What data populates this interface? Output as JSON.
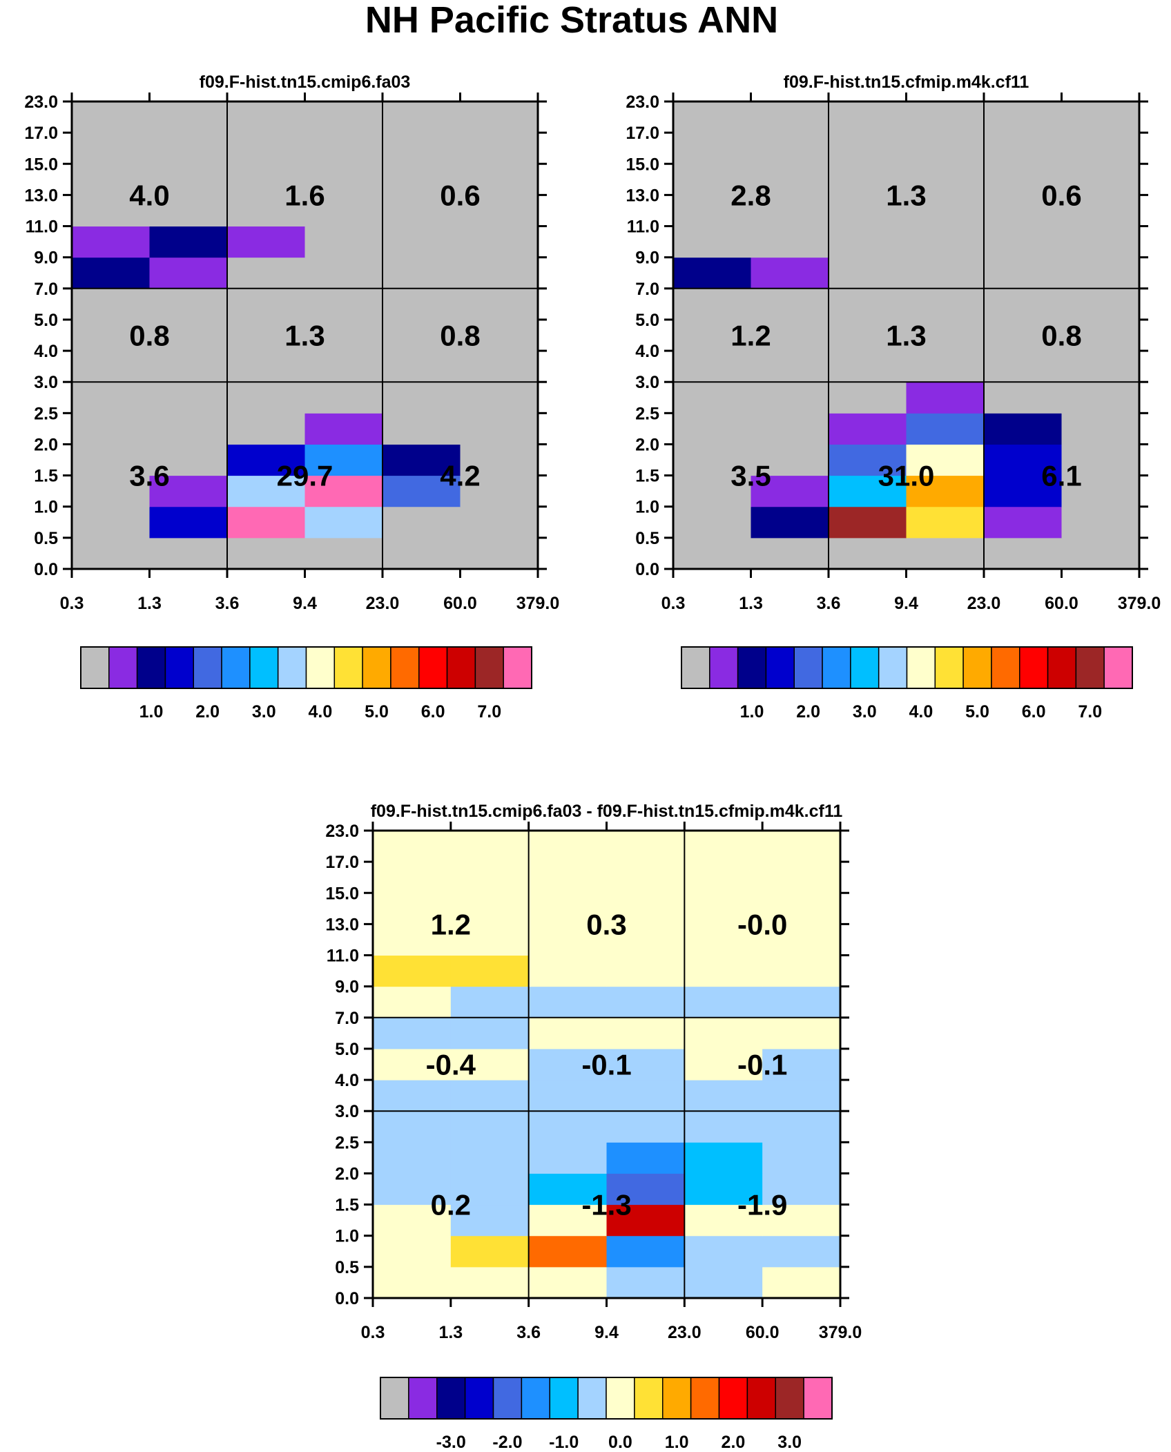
{
  "title": "NH Pacific Stratus ANN",
  "chart_data": [
    {
      "type": "heatmap",
      "title": "f09.F-hist.tn15.cmip6.fa03",
      "x_tick_labels": [
        "0.3",
        "1.3",
        "3.6",
        "9.4",
        "23.0",
        "60.0",
        "379.0"
      ],
      "y_tick_labels": [
        "0.0",
        "0.5",
        "1.0",
        "1.5",
        "2.0",
        "2.5",
        "3.0",
        "4.0",
        "5.0",
        "7.0",
        "9.0",
        "11.0",
        "13.0",
        "15.0",
        "17.0",
        "23.0"
      ],
      "cell_colors_bottom_to_top": [
        [
          "#bebebe",
          "#bebebe",
          "#bebebe",
          "#bebebe",
          "#bebebe",
          "#bebebe"
        ],
        [
          "#bebebe",
          "#0000cd",
          "#ff69b4",
          "#a4d3ff",
          "#bebebe",
          "#bebebe"
        ],
        [
          "#bebebe",
          "#8a2be2",
          "#a4d3ff",
          "#ff69b4",
          "#4169e1",
          "#bebebe"
        ],
        [
          "#bebebe",
          "#bebebe",
          "#0000cd",
          "#1e90ff",
          "#00008b",
          "#bebebe"
        ],
        [
          "#bebebe",
          "#bebebe",
          "#bebebe",
          "#8a2be2",
          "#bebebe",
          "#bebebe"
        ],
        [
          "#bebebe",
          "#bebebe",
          "#bebebe",
          "#bebebe",
          "#bebebe",
          "#bebebe"
        ],
        [
          "#bebebe",
          "#bebebe",
          "#bebebe",
          "#bebebe",
          "#bebebe",
          "#bebebe"
        ],
        [
          "#bebebe",
          "#bebebe",
          "#bebebe",
          "#bebebe",
          "#bebebe",
          "#bebebe"
        ],
        [
          "#bebebe",
          "#bebebe",
          "#bebebe",
          "#bebebe",
          "#bebebe",
          "#bebebe"
        ],
        [
          "#00008b",
          "#8a2be2",
          "#bebebe",
          "#bebebe",
          "#bebebe",
          "#bebebe"
        ],
        [
          "#8a2be2",
          "#00008b",
          "#8a2be2",
          "#bebebe",
          "#bebebe",
          "#bebebe"
        ],
        [
          "#bebebe",
          "#bebebe",
          "#bebebe",
          "#bebebe",
          "#bebebe",
          "#bebebe"
        ],
        [
          "#bebebe",
          "#bebebe",
          "#bebebe",
          "#bebebe",
          "#bebebe",
          "#bebebe"
        ],
        [
          "#bebebe",
          "#bebebe",
          "#bebebe",
          "#bebebe",
          "#bebebe",
          "#bebebe"
        ],
        [
          "#bebebe",
          "#bebebe",
          "#bebebe",
          "#bebebe",
          "#bebebe",
          "#bebebe"
        ]
      ],
      "region_values_top_to_bottom": [
        [
          "4.0",
          "1.6",
          "0.6"
        ],
        [
          "0.8",
          "1.3",
          "0.8"
        ],
        [
          "3.6",
          "29.7",
          "4.2"
        ]
      ],
      "colorbar": {
        "colors": [
          "#bebebe",
          "#8a2be2",
          "#00008b",
          "#0000cd",
          "#4169e1",
          "#1e90ff",
          "#00bfff",
          "#a4d3ff",
          "#ffffcc",
          "#ffe135",
          "#ffaa00",
          "#ff6a00",
          "#ff0000",
          "#cd0000",
          "#9c2626",
          "#ff69b4"
        ],
        "labels": [
          "1.0",
          "2.0",
          "3.0",
          "4.0",
          "5.0",
          "6.0",
          "7.0"
        ]
      }
    },
    {
      "type": "heatmap",
      "title": "f09.F-hist.tn15.cfmip.m4k.cf11",
      "x_tick_labels": [
        "0.3",
        "1.3",
        "3.6",
        "9.4",
        "23.0",
        "60.0",
        "379.0"
      ],
      "y_tick_labels": [
        "0.0",
        "0.5",
        "1.0",
        "1.5",
        "2.0",
        "2.5",
        "3.0",
        "4.0",
        "5.0",
        "7.0",
        "9.0",
        "11.0",
        "13.0",
        "15.0",
        "17.0",
        "23.0"
      ],
      "cell_colors_bottom_to_top": [
        [
          "#bebebe",
          "#bebebe",
          "#bebebe",
          "#bebebe",
          "#bebebe",
          "#bebebe"
        ],
        [
          "#bebebe",
          "#00008b",
          "#9c2626",
          "#ffe135",
          "#8a2be2",
          "#bebebe"
        ],
        [
          "#bebebe",
          "#8a2be2",
          "#00bfff",
          "#ffaa00",
          "#0000cd",
          "#bebebe"
        ],
        [
          "#bebebe",
          "#bebebe",
          "#4169e1",
          "#ffffcc",
          "#0000cd",
          "#bebebe"
        ],
        [
          "#bebebe",
          "#bebebe",
          "#8a2be2",
          "#4169e1",
          "#00008b",
          "#bebebe"
        ],
        [
          "#bebebe",
          "#bebebe",
          "#bebebe",
          "#8a2be2",
          "#bebebe",
          "#bebebe"
        ],
        [
          "#bebebe",
          "#bebebe",
          "#bebebe",
          "#bebebe",
          "#bebebe",
          "#bebebe"
        ],
        [
          "#bebebe",
          "#bebebe",
          "#bebebe",
          "#bebebe",
          "#bebebe",
          "#bebebe"
        ],
        [
          "#bebebe",
          "#bebebe",
          "#bebebe",
          "#bebebe",
          "#bebebe",
          "#bebebe"
        ],
        [
          "#00008b",
          "#8a2be2",
          "#bebebe",
          "#bebebe",
          "#bebebe",
          "#bebebe"
        ],
        [
          "#bebebe",
          "#bebebe",
          "#bebebe",
          "#bebebe",
          "#bebebe",
          "#bebebe"
        ],
        [
          "#bebebe",
          "#bebebe",
          "#bebebe",
          "#bebebe",
          "#bebebe",
          "#bebebe"
        ],
        [
          "#bebebe",
          "#bebebe",
          "#bebebe",
          "#bebebe",
          "#bebebe",
          "#bebebe"
        ],
        [
          "#bebebe",
          "#bebebe",
          "#bebebe",
          "#bebebe",
          "#bebebe",
          "#bebebe"
        ],
        [
          "#bebebe",
          "#bebebe",
          "#bebebe",
          "#bebebe",
          "#bebebe",
          "#bebebe"
        ]
      ],
      "region_values_top_to_bottom": [
        [
          "2.8",
          "1.3",
          "0.6"
        ],
        [
          "1.2",
          "1.3",
          "0.8"
        ],
        [
          "3.5",
          "31.0",
          "6.1"
        ]
      ],
      "colorbar": {
        "colors": [
          "#bebebe",
          "#8a2be2",
          "#00008b",
          "#0000cd",
          "#4169e1",
          "#1e90ff",
          "#00bfff",
          "#a4d3ff",
          "#ffffcc",
          "#ffe135",
          "#ffaa00",
          "#ff6a00",
          "#ff0000",
          "#cd0000",
          "#9c2626",
          "#ff69b4"
        ],
        "labels": [
          "1.0",
          "2.0",
          "3.0",
          "4.0",
          "5.0",
          "6.0",
          "7.0"
        ]
      }
    },
    {
      "type": "heatmap",
      "title": "f09.F-hist.tn15.cmip6.fa03 - f09.F-hist.tn15.cfmip.m4k.cf11",
      "x_tick_labels": [
        "0.3",
        "1.3",
        "3.6",
        "9.4",
        "23.0",
        "60.0",
        "379.0"
      ],
      "y_tick_labels": [
        "0.0",
        "0.5",
        "1.0",
        "1.5",
        "2.0",
        "2.5",
        "3.0",
        "4.0",
        "5.0",
        "7.0",
        "9.0",
        "11.0",
        "13.0",
        "15.0",
        "17.0",
        "23.0"
      ],
      "cell_colors_bottom_to_top": [
        [
          "#ffffcc",
          "#ffffcc",
          "#ffffcc",
          "#a4d3ff",
          "#a4d3ff",
          "#ffffcc"
        ],
        [
          "#ffffcc",
          "#ffe135",
          "#ff6a00",
          "#1e90ff",
          "#a4d3ff",
          "#a4d3ff"
        ],
        [
          "#ffffcc",
          "#a4d3ff",
          "#ffffcc",
          "#cd0000",
          "#ffffcc",
          "#ffffcc"
        ],
        [
          "#a4d3ff",
          "#a4d3ff",
          "#00bfff",
          "#4169e1",
          "#00bfff",
          "#a4d3ff"
        ],
        [
          "#a4d3ff",
          "#a4d3ff",
          "#a4d3ff",
          "#1e90ff",
          "#00bfff",
          "#a4d3ff"
        ],
        [
          "#a4d3ff",
          "#a4d3ff",
          "#a4d3ff",
          "#a4d3ff",
          "#a4d3ff",
          "#a4d3ff"
        ],
        [
          "#a4d3ff",
          "#a4d3ff",
          "#a4d3ff",
          "#a4d3ff",
          "#a4d3ff",
          "#a4d3ff"
        ],
        [
          "#ffffcc",
          "#ffffcc",
          "#a4d3ff",
          "#a4d3ff",
          "#ffffcc",
          "#a4d3ff"
        ],
        [
          "#a4d3ff",
          "#a4d3ff",
          "#ffffcc",
          "#ffffcc",
          "#ffffcc",
          "#ffffcc"
        ],
        [
          "#ffffcc",
          "#a4d3ff",
          "#a4d3ff",
          "#a4d3ff",
          "#a4d3ff",
          "#a4d3ff"
        ],
        [
          "#ffe135",
          "#ffe135",
          "#ffffcc",
          "#ffffcc",
          "#ffffcc",
          "#ffffcc"
        ],
        [
          "#ffffcc",
          "#ffffcc",
          "#ffffcc",
          "#ffffcc",
          "#ffffcc",
          "#ffffcc"
        ],
        [
          "#ffffcc",
          "#ffffcc",
          "#ffffcc",
          "#ffffcc",
          "#ffffcc",
          "#ffffcc"
        ],
        [
          "#ffffcc",
          "#ffffcc",
          "#ffffcc",
          "#ffffcc",
          "#ffffcc",
          "#ffffcc"
        ],
        [
          "#ffffcc",
          "#ffffcc",
          "#ffffcc",
          "#ffffcc",
          "#ffffcc",
          "#ffffcc"
        ]
      ],
      "region_values_top_to_bottom": [
        [
          "1.2",
          "0.3",
          "-0.0"
        ],
        [
          "-0.4",
          "-0.1",
          "-0.1"
        ],
        [
          "0.2",
          "-1.3",
          "-1.9"
        ]
      ],
      "colorbar": {
        "colors": [
          "#bebebe",
          "#8a2be2",
          "#00008b",
          "#0000cd",
          "#4169e1",
          "#1e90ff",
          "#00bfff",
          "#a4d3ff",
          "#ffffcc",
          "#ffe135",
          "#ffaa00",
          "#ff6a00",
          "#ff0000",
          "#cd0000",
          "#9c2626",
          "#ff69b4"
        ],
        "labels": [
          "-3.0",
          "-2.0",
          "-1.0",
          "0.0",
          "1.0",
          "2.0",
          "3.0"
        ]
      }
    }
  ]
}
